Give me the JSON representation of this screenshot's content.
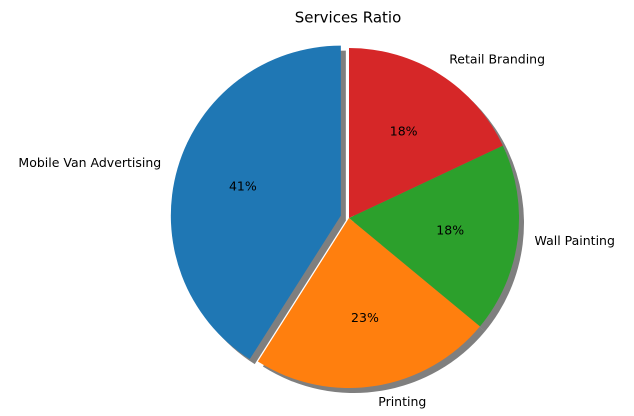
{
  "chart_data": {
    "type": "pie",
    "title": "Services Ratio",
    "categories": [
      "Mobile Van Advertising",
      "Printing",
      "Wall Painting",
      "Retail Branding"
    ],
    "values": [
      41,
      23,
      18,
      18
    ],
    "value_labels": [
      "41%",
      "23%",
      "18%",
      "18%"
    ],
    "colors": [
      "#1f77b4",
      "#ff7f0e",
      "#2ca02c",
      "#d62728"
    ],
    "explode": [
      0.05,
      0,
      0,
      0
    ],
    "startangle": 90,
    "shadow": true
  }
}
